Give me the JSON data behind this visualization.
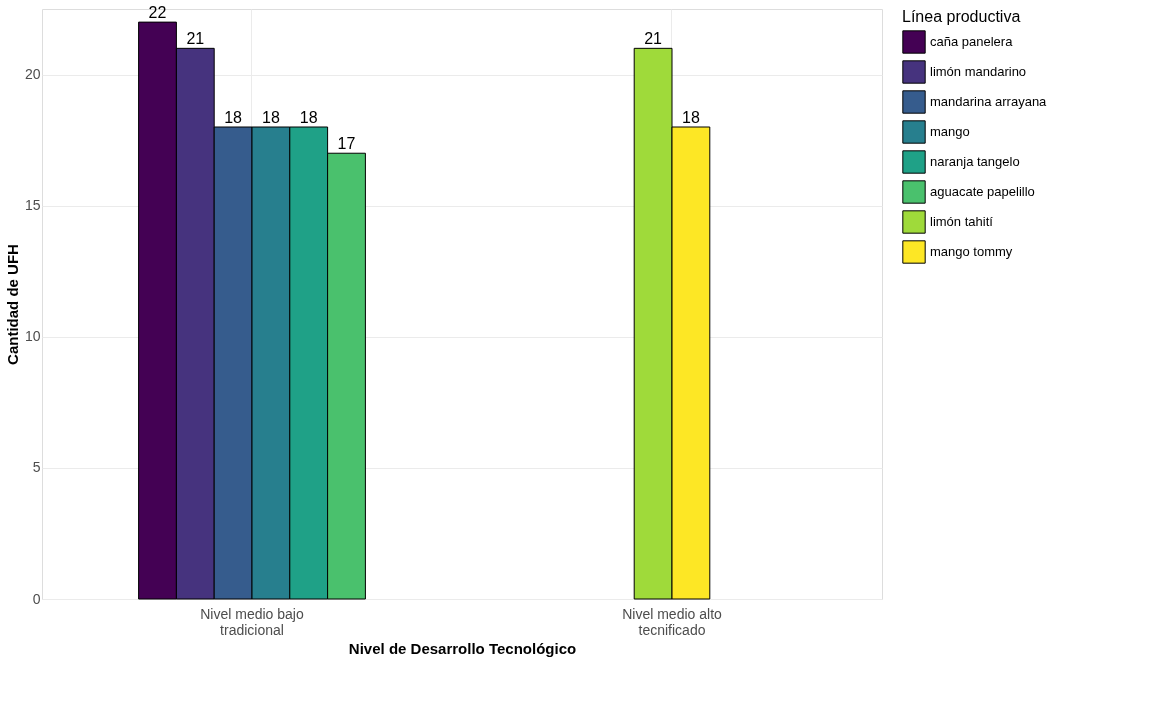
{
  "chart_data": {
    "type": "bar",
    "xlabel": "Nivel de Desarrollo Tecnológico",
    "ylabel": "Cantidad de UFH",
    "legend_title": "Línea productiva",
    "categories": [
      "Nivel medio bajo\ntradicional",
      "Nivel medio alto\ntecnificado"
    ],
    "series": [
      {
        "name": "caña panelera",
        "color": "#440154",
        "values": [
          22,
          null
        ]
      },
      {
        "name": "limón mandarino",
        "color": "#46337e",
        "values": [
          21,
          null
        ]
      },
      {
        "name": "mandarina arrayana",
        "color": "#365c8d",
        "values": [
          18,
          null
        ]
      },
      {
        "name": "mango",
        "color": "#277f8e",
        "values": [
          18,
          null
        ]
      },
      {
        "name": "naranja tangelo",
        "color": "#1fa187",
        "values": [
          18,
          null
        ]
      },
      {
        "name": "aguacate papelillo",
        "color": "#4ac16d",
        "values": [
          17,
          null
        ]
      },
      {
        "name": "limón tahití",
        "color": "#9fda3a",
        "values": [
          null,
          21
        ]
      },
      {
        "name": "mango tommy",
        "color": "#fde725",
        "values": [
          null,
          18
        ]
      }
    ],
    "ylim": [
      0,
      22.5
    ],
    "yticks": [
      0,
      5,
      10,
      15,
      20
    ],
    "grid": true,
    "legend": "right",
    "data_labels": true
  }
}
